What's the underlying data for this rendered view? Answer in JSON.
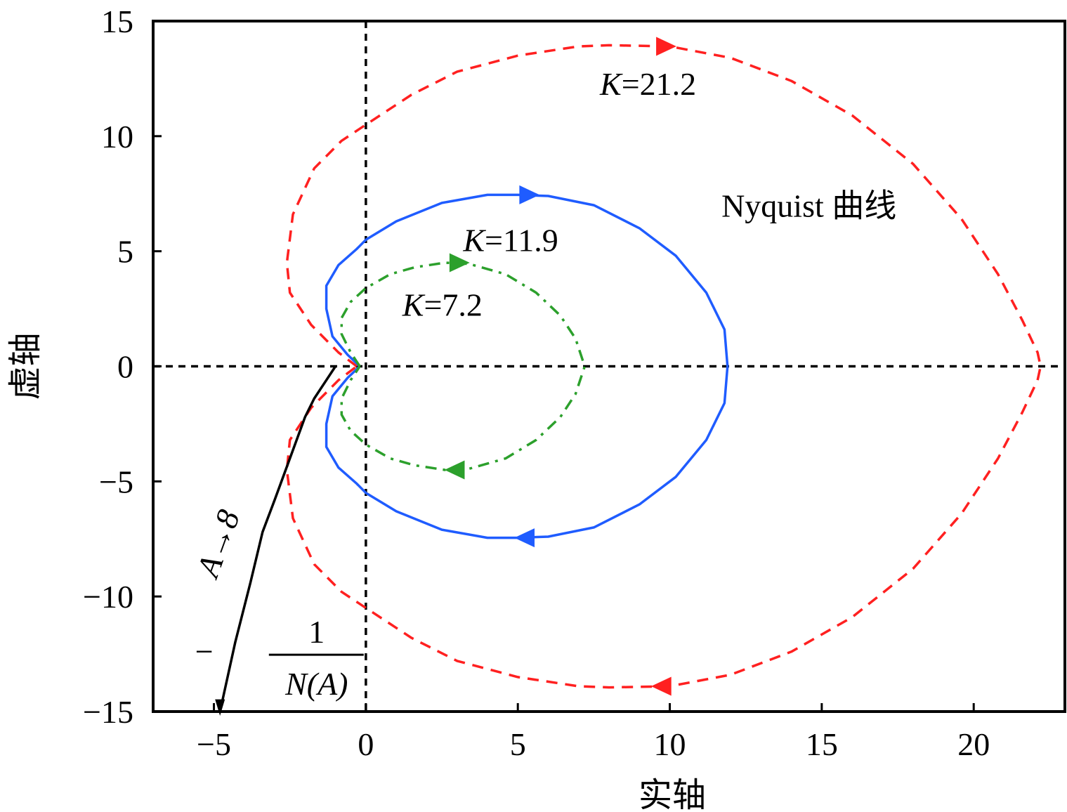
{
  "chart_data": {
    "type": "line",
    "title": "",
    "xlabel": "实轴",
    "ylabel": "虚轴",
    "xlim": [
      -7,
      23
    ],
    "ylim": [
      -15,
      15
    ],
    "xticks": [
      -5,
      0,
      5,
      10,
      15,
      20
    ],
    "yticks": [
      -15,
      -10,
      -5,
      0,
      5,
      10,
      15
    ],
    "xtick_labels": [
      "−5",
      "0",
      "5",
      "10",
      "15",
      "20"
    ],
    "ytick_labels": [
      "−15",
      "−10",
      "−5",
      "0",
      "5",
      "10",
      "15"
    ],
    "grid": false,
    "reference_lines": [
      {
        "name": "real-axis-zero-line",
        "orientation": "horizontal",
        "value": 0,
        "style": "dashed",
        "color": "#000000"
      },
      {
        "name": "imag-axis-zero-line",
        "orientation": "vertical",
        "value": 0,
        "style": "dashed",
        "color": "#000000"
      }
    ],
    "series": [
      {
        "name": "K=21.2",
        "label_text": "=21.2",
        "color": "#ff2020",
        "style": "dashed",
        "points_upper": [
          [
            -0.3,
            0
          ],
          [
            -0.9,
            0.6
          ],
          [
            -1.8,
            1.8
          ],
          [
            -2.5,
            3.2
          ],
          [
            -2.6,
            4.5
          ],
          [
            -2.4,
            6.6
          ],
          [
            -1.7,
            8.6
          ],
          [
            -0.8,
            9.8
          ],
          [
            0,
            10.5
          ],
          [
            1.5,
            11.8
          ],
          [
            3,
            12.8
          ],
          [
            5,
            13.5
          ],
          [
            7,
            13.9
          ],
          [
            8,
            13.95
          ],
          [
            10,
            13.9
          ],
          [
            12,
            13.4
          ],
          [
            14,
            12.4
          ],
          [
            16,
            10.9
          ],
          [
            18,
            8.8
          ],
          [
            19.6,
            6.4
          ],
          [
            20.8,
            4.0
          ],
          [
            21.6,
            2.0
          ],
          [
            22.1,
            0.6
          ],
          [
            22.2,
            0
          ]
        ],
        "arrows": [
          [
            9.8,
            13.9,
            "right"
          ],
          [
            9.8,
            -13.9,
            "left"
          ]
        ],
        "crossing_real_axis": 22.2
      },
      {
        "name": "K=11.9",
        "label_text": "=11.9",
        "color": "#1f5cff",
        "style": "solid",
        "points_upper": [
          [
            -0.2,
            0
          ],
          [
            -0.6,
            0.5
          ],
          [
            -1.1,
            1.3
          ],
          [
            -1.3,
            2.5
          ],
          [
            -1.3,
            3.5
          ],
          [
            -0.9,
            4.4
          ],
          [
            -0.3,
            5.1
          ],
          [
            0,
            5.5
          ],
          [
            1,
            6.3
          ],
          [
            2.5,
            7.1
          ],
          [
            4,
            7.45
          ],
          [
            5,
            7.45
          ],
          [
            6,
            7.4
          ],
          [
            7.5,
            7.0
          ],
          [
            9,
            6.0
          ],
          [
            10.2,
            4.8
          ],
          [
            11.2,
            3.2
          ],
          [
            11.8,
            1.6
          ],
          [
            11.9,
            0
          ]
        ],
        "arrows": [
          [
            5.3,
            7.45,
            "right"
          ],
          [
            5.3,
            -7.45,
            "left"
          ]
        ],
        "crossing_real_axis": 11.9
      },
      {
        "name": "K=7.2",
        "label_text": "=7.2",
        "color": "#2ca02c",
        "style": "dashdot",
        "points_upper": [
          [
            -0.2,
            0
          ],
          [
            -0.5,
            0.6
          ],
          [
            -0.8,
            1.4
          ],
          [
            -0.8,
            2.1
          ],
          [
            -0.5,
            2.8
          ],
          [
            0,
            3.4
          ],
          [
            0.8,
            4.0
          ],
          [
            1.6,
            4.3
          ],
          [
            2.6,
            4.5
          ],
          [
            3.4,
            4.45
          ],
          [
            4.6,
            4.0
          ],
          [
            5.6,
            3.2
          ],
          [
            6.4,
            2.2
          ],
          [
            6.9,
            1.2
          ],
          [
            7.2,
            0
          ]
        ],
        "arrows": [
          [
            3.0,
            4.5,
            "right"
          ],
          [
            3.0,
            -4.5,
            "left"
          ]
        ],
        "crossing_real_axis": 7.2
      },
      {
        "name": "-1/N(A)",
        "color": "#000000",
        "style": "solid",
        "points": [
          [
            -1.0,
            0
          ],
          [
            -1.3,
            -0.6
          ],
          [
            -1.7,
            -1.4
          ],
          [
            -2.0,
            -2.2
          ],
          [
            -2.5,
            -4.0
          ],
          [
            -3.0,
            -5.8
          ],
          [
            -3.4,
            -7.2
          ],
          [
            -3.8,
            -9.4
          ],
          [
            -4.3,
            -12.0
          ],
          [
            -4.8,
            -15.0
          ]
        ],
        "arrows": [
          [
            -4.8,
            -14.8,
            "down"
          ]
        ]
      }
    ],
    "annotations": [
      {
        "name": "label-k-21-2",
        "italic": "K",
        "text": "=21.2",
        "x": 7.7,
        "y": 11.8
      },
      {
        "name": "label-k-11-9",
        "italic": "K",
        "text": "=11.9",
        "x": 3.2,
        "y": 5.0
      },
      {
        "name": "label-k-7-2",
        "italic": "K",
        "text": "=7.2",
        "x": 1.2,
        "y": 2.2
      },
      {
        "name": "label-nyquist",
        "text": "Nyquist 曲线",
        "x": 11.7,
        "y": 6.5
      },
      {
        "name": "label-a-to-8",
        "text": "A→8",
        "rotation": -70,
        "x": -5.0,
        "y": -9.0
      },
      {
        "name": "label-minus-inverse-na",
        "minus": "−",
        "numerator": "1",
        "denominator": "N(A)",
        "x": -4.0,
        "y": -12.5
      }
    ]
  }
}
